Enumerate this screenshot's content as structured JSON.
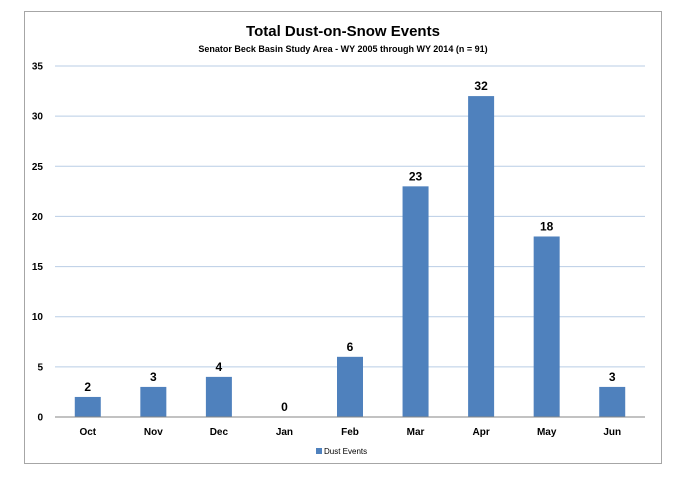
{
  "chart_data": {
    "type": "bar",
    "title": "Total Dust-on-Snow Events",
    "subtitle": "Senator Beck Basin Study Area - WY 2005 through WY 2014 (n = 91)",
    "categories": [
      "Oct",
      "Nov",
      "Dec",
      "Jan",
      "Feb",
      "Mar",
      "Apr",
      "May",
      "Jun"
    ],
    "series": [
      {
        "name": "Dust Events",
        "values": [
          2,
          3,
          4,
          0,
          6,
          23,
          32,
          18,
          3
        ],
        "color": "#4f81bd"
      }
    ],
    "data_labels": [
      "2",
      "3",
      "4",
      "0",
      "6",
      "23",
      "32",
      "18",
      "3"
    ],
    "ylim": [
      0,
      35
    ],
    "yticks": [
      0,
      5,
      10,
      15,
      20,
      25,
      30,
      35
    ],
    "ytick_labels": [
      "0",
      "5",
      "10",
      "15",
      "20",
      "25",
      "30",
      "35"
    ],
    "grid": true,
    "gridline_color": "#b9cde5",
    "legend_position": "bottom-center",
    "xlabel": "",
    "ylabel": ""
  }
}
